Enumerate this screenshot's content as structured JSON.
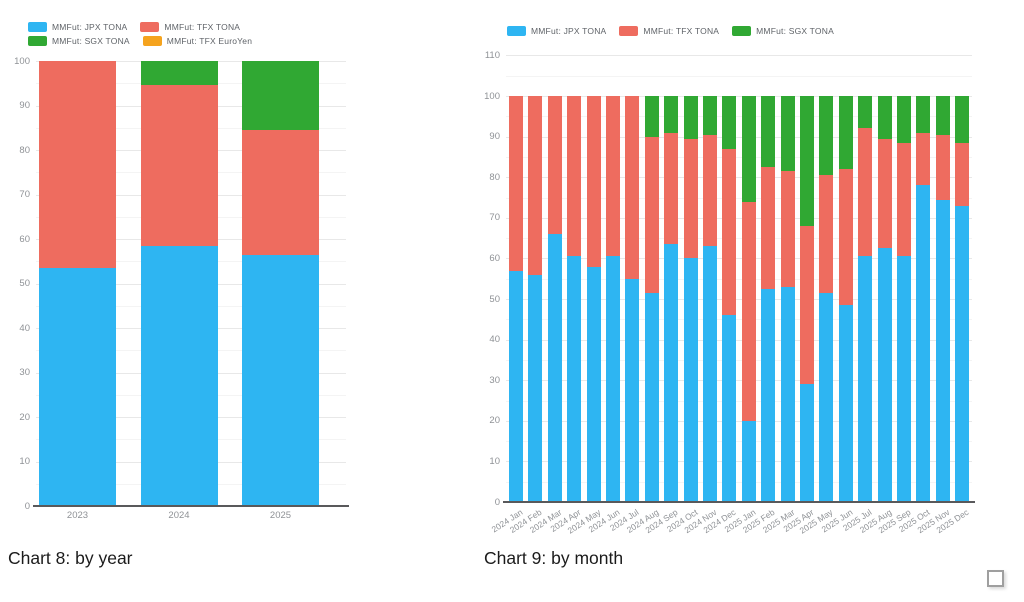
{
  "captions": {
    "chart8": "Chart 8: by year",
    "chart9": "Chart 9: by month"
  },
  "checkbox": {
    "checked": false
  },
  "colors": {
    "jpx_blue": "#2eb5f2",
    "tfx_red": "#ee6c5f",
    "sgx_green": "#30a833",
    "euroyen_orange": "#f5a31e",
    "axis_text": "#8f9296",
    "legend_text": "#5f6368",
    "grid_major": "#e8e8e8",
    "grid_minor": "#f4f4f4",
    "axis_line": "#59595b"
  },
  "chart_data": [
    {
      "type": "bar",
      "stacked": true,
      "title": "Chart 8: by year",
      "legend_position": "top",
      "grid": true,
      "xlabel": "",
      "ylabel": "",
      "ylim": [
        0,
        100
      ],
      "ytick_step": 10,
      "ytick_minor_step": 5,
      "categories": [
        "2023",
        "2024",
        "2025"
      ],
      "series": [
        {
          "name": "MMFut: JPX TONA",
          "color": "#2eb5f2",
          "values": [
            53.5,
            58.5,
            56.5
          ]
        },
        {
          "name": "MMFut: TFX TONA",
          "color": "#ee6c5f",
          "values": [
            46.5,
            36.0,
            28.0
          ]
        },
        {
          "name": "MMFut: SGX TONA",
          "color": "#30a833",
          "values": [
            0,
            5.5,
            15.5
          ]
        },
        {
          "name": "MMFut: TFX EuroYen",
          "color": "#f5a31e",
          "values": [
            0,
            0,
            0
          ]
        }
      ]
    },
    {
      "type": "bar",
      "stacked": true,
      "title": "Chart 9: by month",
      "legend_position": "top",
      "grid": true,
      "xlabel": "",
      "ylabel": "",
      "ylim": [
        0,
        110
      ],
      "ytick_step": 10,
      "ytick_minor_step": 5,
      "categories": [
        "2024 Jan",
        "2024 Feb",
        "2024 Mar",
        "2024 Apr",
        "2024 May",
        "2024 Jun",
        "2024 Jul",
        "2024 Aug",
        "2024 Sep",
        "2024 Oct",
        "2024 Nov",
        "2024 Dec",
        "2025 Jan",
        "2025 Feb",
        "2025 Mar",
        "2025 Apr",
        "2025 May",
        "2025 Jun",
        "2025 Jul",
        "2025 Aug",
        "2025 Sep",
        "2025 Oct",
        "2025 Nov",
        "2025 Dec"
      ],
      "series": [
        {
          "name": "MMFut: JPX TONA",
          "color": "#2eb5f2",
          "values": [
            57,
            56,
            66,
            60.5,
            58,
            60.5,
            55,
            51.5,
            63.5,
            60,
            63,
            46,
            20,
            52.5,
            53,
            29,
            51.5,
            48.5,
            60.5,
            62.5,
            60.5,
            78,
            74.5,
            73
          ]
        },
        {
          "name": "MMFut: TFX TONA",
          "color": "#ee6c5f",
          "values": [
            43,
            44,
            34,
            39.5,
            42,
            39.5,
            45,
            38.5,
            27.5,
            29.5,
            27.5,
            41,
            54,
            30,
            28.5,
            39,
            29,
            33.5,
            31.5,
            27,
            28,
            13,
            16,
            15.5
          ]
        },
        {
          "name": "MMFut: SGX TONA",
          "color": "#30a833",
          "values": [
            0,
            0,
            0,
            0,
            0,
            0,
            0,
            10,
            9,
            10.5,
            9.5,
            13,
            26,
            17.5,
            18.5,
            32,
            19.5,
            18,
            8,
            10.5,
            11.5,
            9,
            9.5,
            11.5
          ]
        }
      ]
    }
  ]
}
